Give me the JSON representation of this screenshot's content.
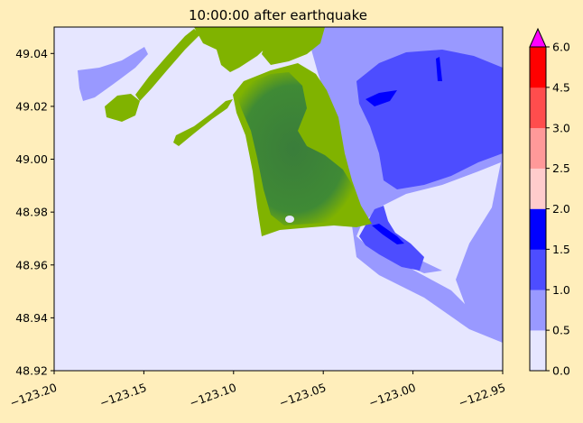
{
  "chart_data": {
    "type": "heatmap",
    "title": "10:00:00 after earthquake",
    "xlabel": "",
    "ylabel": "",
    "xlim": [
      -123.2,
      -122.95
    ],
    "ylim": [
      48.92,
      49.05
    ],
    "x_ticks": [
      -123.2,
      -123.15,
      -123.1,
      -123.05,
      -123.0,
      -122.95
    ],
    "x_tick_labels": [
      "−123.20",
      "−123.15",
      "−123.10",
      "−123.05",
      "−123.00",
      "−122.95"
    ],
    "y_ticks": [
      48.92,
      48.94,
      48.96,
      48.98,
      49.0,
      49.02,
      49.04
    ],
    "y_tick_labels": [
      "48.92",
      "48.94",
      "48.96",
      "48.98",
      "49.00",
      "49.02",
      "49.04"
    ],
    "colorbar": {
      "boundaries": [
        0.0,
        0.5,
        1.0,
        1.5,
        2.0,
        2.5,
        3.0,
        4.5,
        6.0
      ],
      "tick_labels": [
        "0.0",
        "0.5",
        "1.0",
        "1.5",
        "2.0",
        "2.5",
        "3.0",
        "4.5",
        "6.0"
      ],
      "colors": [
        "#e6e6ff",
        "#9999ff",
        "#4d4dff",
        "#0000ff",
        "#ffcccc",
        "#ff9999",
        "#ff4d4d",
        "#ff0000"
      ],
      "extend_max_color": "#ff00ff"
    },
    "land_colors": [
      "#80b300",
      "#3a7d3a"
    ],
    "ocean_background": "#e6e6ff",
    "grid": false
  }
}
